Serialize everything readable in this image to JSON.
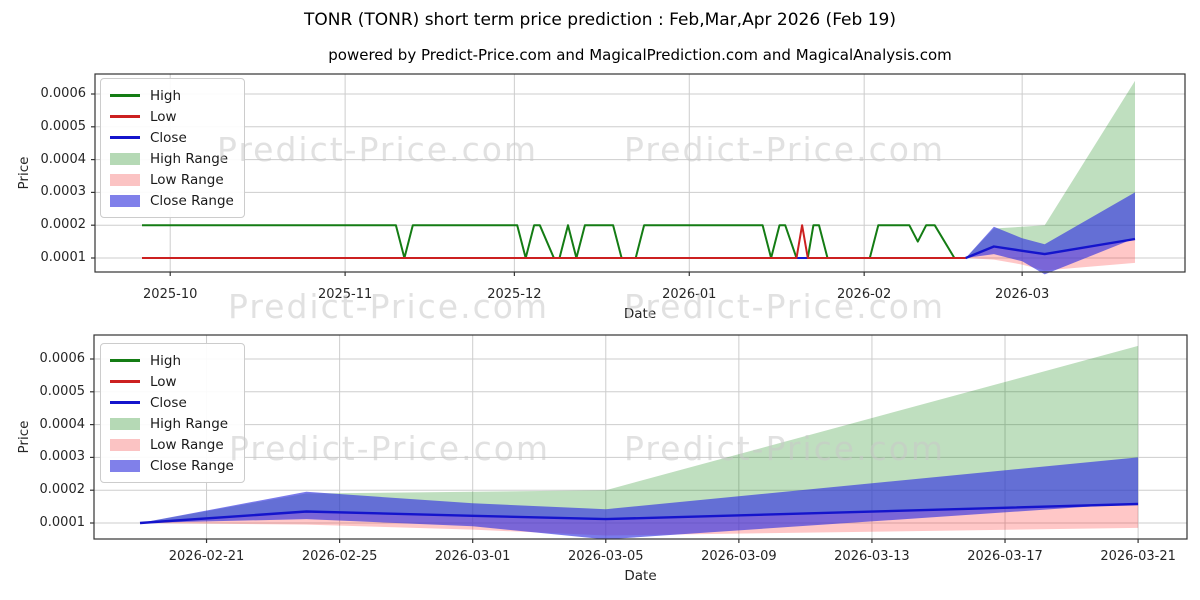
{
  "title": "TONR (TONR) short term price prediction : Feb,Mar,Apr 2026 (Feb 19)",
  "subtitle": "powered by Predict-Price.com and MagicalPrediction.com and MagicalAnalysis.com",
  "watermark_text": "Predict-Price.com",
  "colors": {
    "high_line": "#147c14",
    "low_line": "#cc2020",
    "close_line": "#1414cc",
    "high_range_fill": "#008000",
    "low_range_fill": "#ff0000",
    "close_range_fill": "#3333e0",
    "grid": "#cdcdcd",
    "spine": "#333333",
    "watermark": "#c9c9c9"
  },
  "legend": [
    {
      "label": "High",
      "style": "line",
      "color": "#147c14"
    },
    {
      "label": "Low",
      "style": "line",
      "color": "#cc2020"
    },
    {
      "label": "Close",
      "style": "line",
      "color": "#1414cc"
    },
    {
      "label": "High Range",
      "style": "fill",
      "color": "#b5d9b5"
    },
    {
      "label": "Low Range",
      "style": "fill",
      "color": "#fbc3c3"
    },
    {
      "label": "Close Range",
      "style": "fill",
      "color": "#8080ea"
    }
  ],
  "chart_data": [
    {
      "type": "line",
      "xlabel": "Date",
      "ylabel": "Price",
      "ylim": [
        5e-05,
        0.00067
      ],
      "grid": true,
      "legend_position": "upper-left",
      "yticks": [
        0.0001,
        0.0002,
        0.0003,
        0.0004,
        0.0005,
        0.0006
      ],
      "ytick_labels": [
        "0.0001",
        "0.0002",
        "0.0003",
        "0.0004",
        "0.0005",
        "0.0006"
      ],
      "xticks": [
        {
          "label": "2025-10",
          "day": 5
        },
        {
          "label": "2025-11",
          "day": 36
        },
        {
          "label": "2025-12",
          "day": 66
        },
        {
          "label": "2026-01",
          "day": 97
        },
        {
          "label": "2026-02",
          "day": 128
        },
        {
          "label": "2026-03",
          "day": 156
        }
      ],
      "historical": {
        "high": [
          [
            0,
            0.0002
          ],
          [
            45,
            0.0002
          ],
          [
            46.5,
            0.0001
          ],
          [
            48,
            0.0002
          ],
          [
            66.5,
            0.0002
          ],
          [
            68,
            0.0001
          ],
          [
            69.5,
            0.0002
          ],
          [
            70.5,
            0.0002
          ],
          [
            73,
            0.0001
          ],
          [
            74,
            0.0001
          ],
          [
            75.5,
            0.0002
          ],
          [
            77,
            0.0001
          ],
          [
            78.5,
            0.0002
          ],
          [
            83.5,
            0.0002
          ],
          [
            85,
            0.0001
          ],
          [
            87.5,
            0.0001
          ],
          [
            89,
            0.0002
          ],
          [
            110,
            0.0002
          ],
          [
            111.5,
            0.0001
          ],
          [
            113,
            0.0002
          ],
          [
            114,
            0.0002
          ],
          [
            116,
            0.0001
          ],
          [
            118,
            0.0001
          ],
          [
            119,
            0.0002
          ],
          [
            120,
            0.0002
          ],
          [
            121.5,
            0.0001
          ],
          [
            129,
            0.0001
          ],
          [
            130.5,
            0.0002
          ],
          [
            136,
            0.0002
          ],
          [
            137.5,
            0.00015
          ],
          [
            139,
            0.0002
          ],
          [
            140.5,
            0.0002
          ],
          [
            144,
            0.0001
          ],
          [
            146,
            0.0001
          ]
        ],
        "low": [
          [
            0,
            0.0001
          ],
          [
            116,
            0.0001
          ],
          [
            117,
            0.0002
          ],
          [
            118,
            0.0001
          ],
          [
            146,
            0.0001
          ]
        ],
        "close": [
          [
            0,
            0.0001
          ],
          [
            146,
            0.0001
          ]
        ]
      },
      "prediction": {
        "days_from_start": [
          0,
          5,
          10,
          14,
          30
        ],
        "close": [
          0.0001,
          0.000135,
          0.000122,
          0.000112,
          0.000158
        ],
        "close_range_high": [
          0.0001,
          0.000195,
          0.00016,
          0.000142,
          0.0003
        ],
        "close_range_low": [
          0.0001,
          0.000112,
          9e-05,
          5e-05,
          0.00016
        ],
        "high_range_high": [
          0.0001,
          0.00019,
          0.000195,
          0.0002,
          0.00064
        ],
        "low_range_low": [
          0.0001,
          9.5e-05,
          8e-05,
          6.2e-05,
          8.5e-05
        ]
      }
    },
    {
      "type": "line",
      "xlabel": "Date",
      "ylabel": "Price",
      "ylim": [
        5e-05,
        0.00067
      ],
      "grid": true,
      "legend_position": "upper-left",
      "yticks": [
        0.0001,
        0.0002,
        0.0003,
        0.0004,
        0.0005,
        0.0006
      ],
      "ytick_labels": [
        "0.0001",
        "0.0002",
        "0.0003",
        "0.0004",
        "0.0005",
        "0.0006"
      ],
      "xticks": [
        {
          "label": "2026-02-21",
          "day": 2
        },
        {
          "label": "2026-02-25",
          "day": 6
        },
        {
          "label": "2026-03-01",
          "day": 10
        },
        {
          "label": "2026-03-05",
          "day": 14
        },
        {
          "label": "2026-03-09",
          "day": 18
        },
        {
          "label": "2026-03-13",
          "day": 22
        },
        {
          "label": "2026-03-17",
          "day": 26
        },
        {
          "label": "2026-03-21",
          "day": 30
        }
      ],
      "prediction": {
        "days_from_start": [
          0,
          5,
          10,
          14,
          30
        ],
        "close": [
          0.0001,
          0.000135,
          0.000122,
          0.000112,
          0.000158
        ],
        "close_range_high": [
          0.0001,
          0.000195,
          0.00016,
          0.000142,
          0.0003
        ],
        "close_range_low": [
          0.0001,
          0.000112,
          9e-05,
          5e-05,
          0.00016
        ],
        "high_range_high": [
          0.0001,
          0.00019,
          0.000195,
          0.0002,
          0.00064
        ],
        "low_range_low": [
          0.0001,
          9.5e-05,
          8e-05,
          6.2e-05,
          8.5e-05
        ]
      }
    }
  ]
}
